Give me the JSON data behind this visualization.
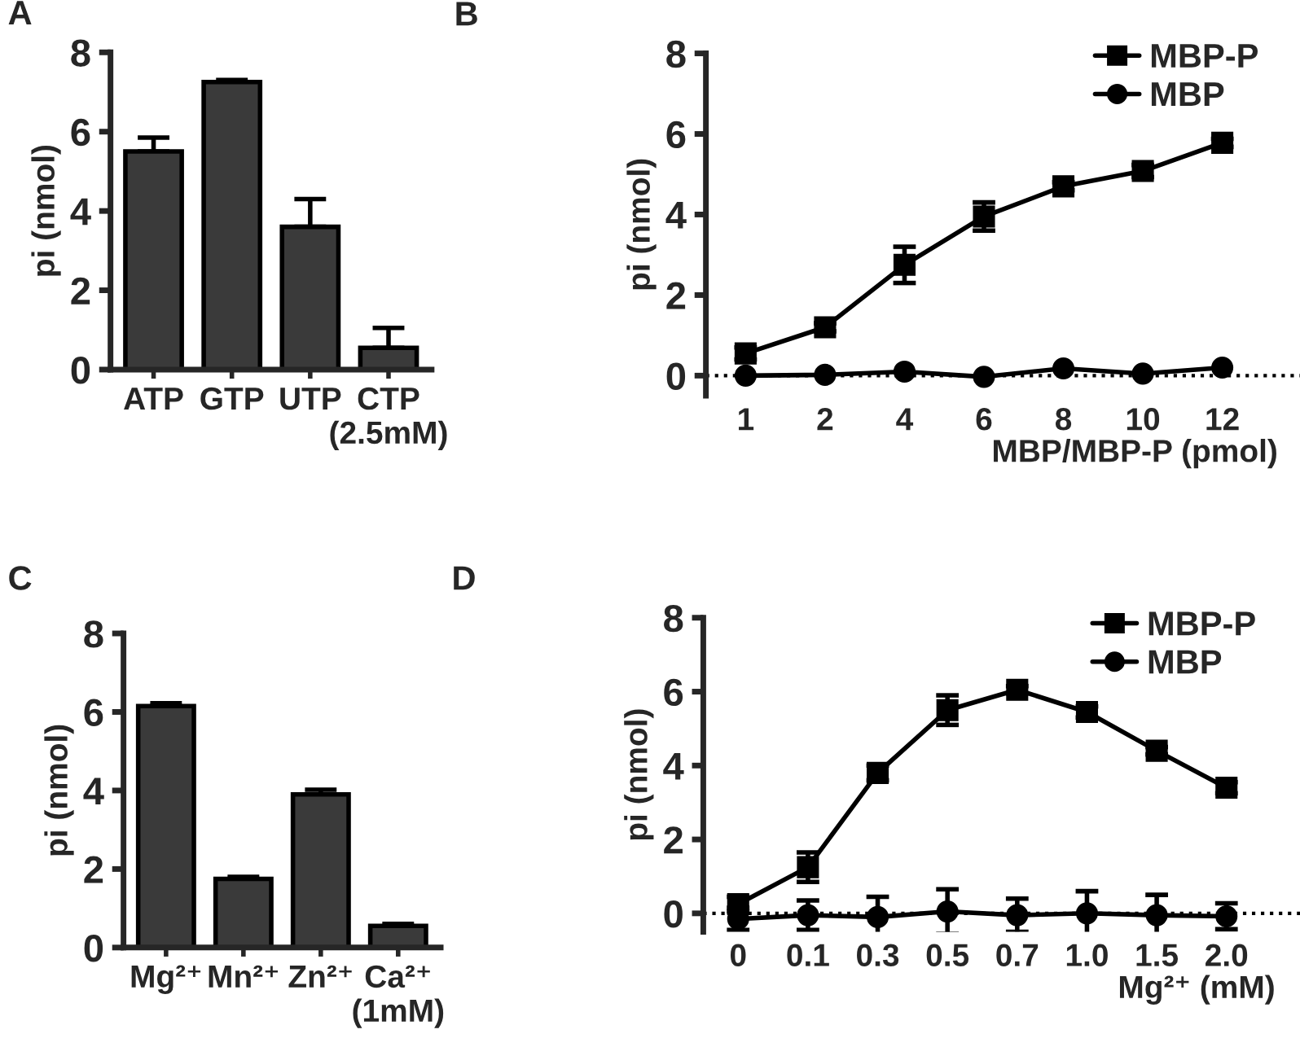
{
  "chart_data": [
    {
      "type": "bar",
      "title": "A",
      "ylabel": "pi (nmol)",
      "categories": [
        "ATP",
        "GTP",
        "UTP",
        "CTP\n(2.5mM)"
      ],
      "values": [
        5.5,
        7.25,
        3.6,
        0.55
      ],
      "errors": [
        [
          5.5,
          5.85
        ],
        [
          7.25,
          7.3
        ],
        [
          3.6,
          4.3
        ],
        [
          0.55,
          1.05
        ]
      ],
      "color": "#3a3a3a",
      "ylim": [
        0,
        8
      ],
      "yticks": [
        0,
        2,
        4,
        6,
        8
      ]
    },
    {
      "type": "line",
      "title": "B",
      "xlabel": "MBP/MBP-P (pmol)",
      "ylabel": "pi (nmol)",
      "categories": [
        "1",
        "2",
        "4",
        "6",
        "8",
        "10",
        "12"
      ],
      "series": [
        {
          "name": "MBP-P",
          "color": "#000000",
          "marker": "square",
          "values": [
            0.55,
            1.2,
            2.75,
            3.95,
            4.7,
            5.08,
            5.78
          ],
          "errors": [
            0.15,
            0.1,
            0.45,
            0.35,
            0.1,
            0.15,
            0.1
          ]
        },
        {
          "name": "MBP",
          "color": "#000000",
          "marker": "circle",
          "values": [
            0,
            0.02,
            0.1,
            -0.03,
            0.18,
            0.05,
            0.2
          ]
        }
      ],
      "ylim": [
        -0.5,
        8
      ],
      "yticks": [
        0,
        2,
        4,
        6,
        8
      ],
      "legend": "top right",
      "ref_lines": [
        {
          "axis": "y",
          "value": 0,
          "line_style": "dotted",
          "color": "#000000"
        }
      ]
    },
    {
      "type": "bar",
      "title": "C",
      "ylabel": "pi (nmol)",
      "categories": [
        "Mg²⁺",
        "Mn²⁺",
        "Zn²⁺",
        "Ca²⁺\n(1mM)"
      ],
      "values": [
        6.15,
        1.75,
        3.9,
        0.55
      ],
      "errors": [
        [
          6.15,
          6.22
        ],
        [
          1.75,
          1.8
        ],
        [
          3.9,
          4.02
        ],
        [
          0.55,
          0.6
        ]
      ],
      "color": "#3a3a3a",
      "ylim": [
        0,
        8
      ],
      "yticks": [
        0,
        2,
        4,
        6,
        8
      ]
    },
    {
      "type": "line",
      "title": "D",
      "xlabel": "Mg²⁺ (mM)",
      "ylabel": "pi (nmol)",
      "categories": [
        "0",
        "0.1",
        "0.3",
        "0.5",
        "0.7",
        "1.0",
        "1.5",
        "2.0"
      ],
      "series": [
        {
          "name": "MBP-P",
          "color": "#000000",
          "marker": "square",
          "values": [
            0.25,
            1.25,
            3.8,
            5.5,
            6.05,
            5.45,
            4.4,
            3.4
          ],
          "errors": [
            0.2,
            0.4,
            0.2,
            0.4,
            0.1,
            0.15,
            0.1,
            0.15
          ]
        },
        {
          "name": "MBP",
          "color": "#000000",
          "marker": "circle",
          "values": [
            -0.15,
            -0.05,
            -0.1,
            0.05,
            -0.05,
            0,
            -0.05,
            -0.08
          ],
          "errors": [
            0.3,
            0.4,
            0.55,
            0.6,
            0.45,
            0.6,
            0.55,
            0.35
          ]
        }
      ],
      "ylim": [
        -0.5,
        8
      ],
      "yticks": [
        0,
        2,
        4,
        6,
        8
      ],
      "legend": "top right",
      "ref_lines": [
        {
          "axis": "y",
          "value": 0,
          "line_style": "dotted",
          "color": "#000000"
        }
      ]
    }
  ]
}
